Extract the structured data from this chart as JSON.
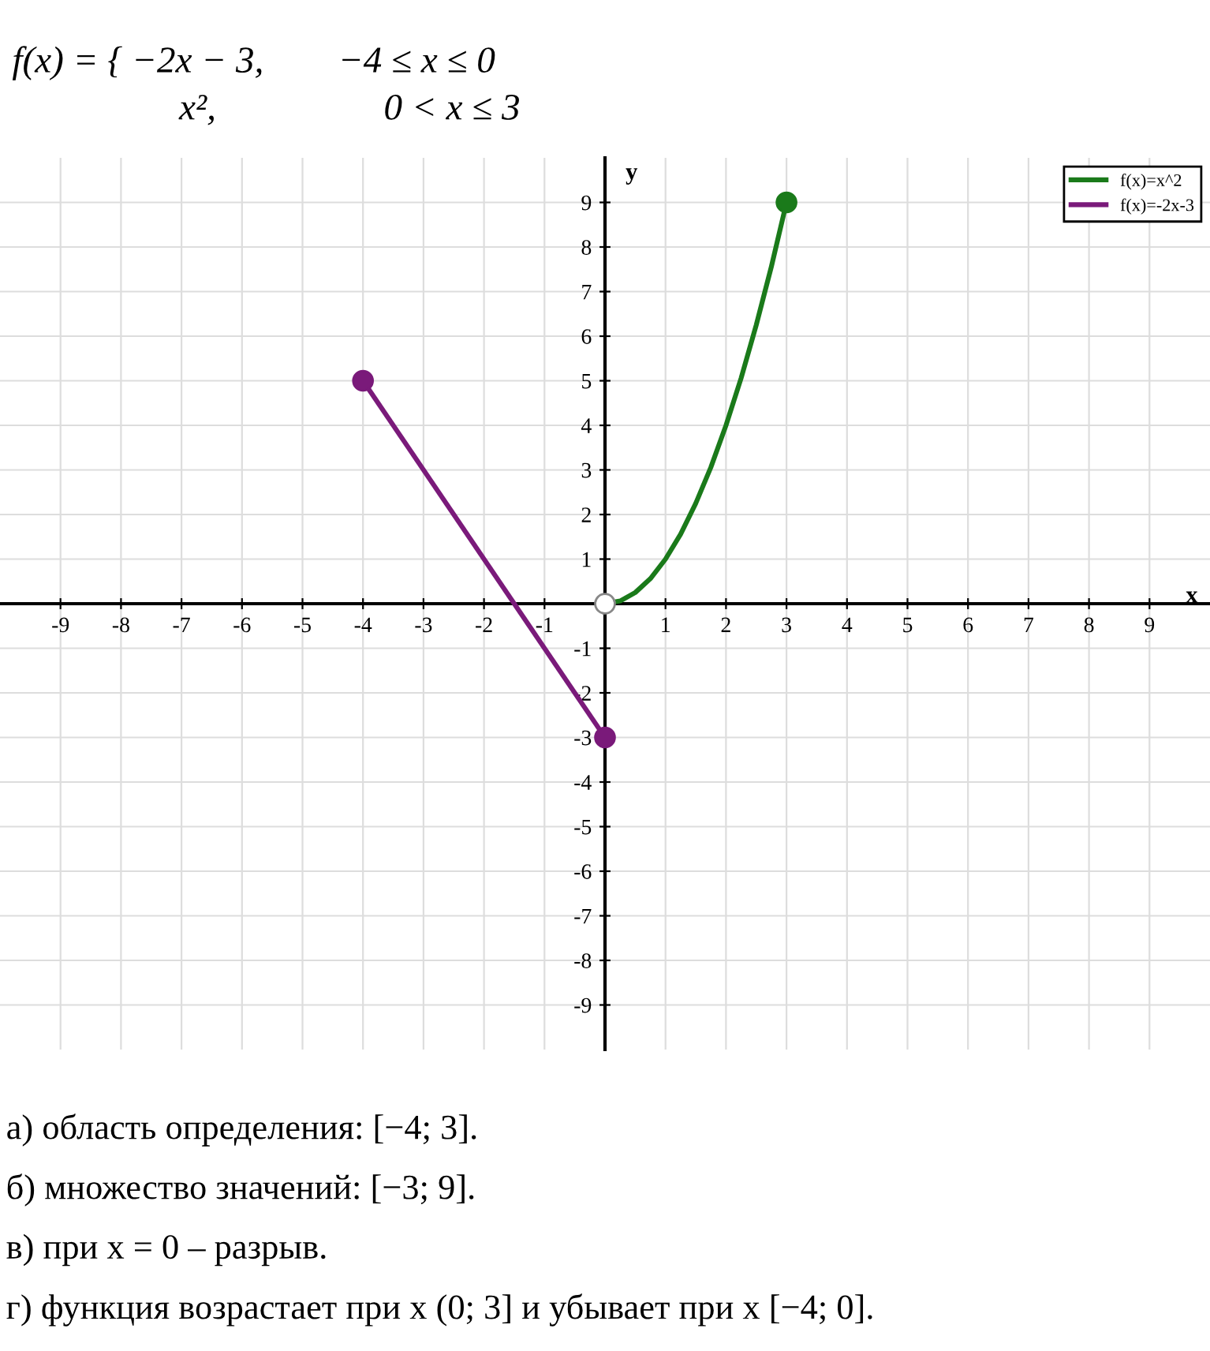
{
  "chart_data": {
    "type": "line",
    "title": "f(x) = { −2x − 3,        −4 ≤ x ≤ 0",
    "subtitle": "x²,                  0 < x ≤ 3",
    "xlabel": "x",
    "ylabel": "y",
    "series": [
      {
        "name": "f(x)=x^2",
        "color": "#1a7a1a",
        "x": [
          0,
          0.25,
          0.5,
          0.75,
          1,
          1.25,
          1.5,
          1.75,
          2,
          2.25,
          2.5,
          2.75,
          3
        ],
        "values": [
          0,
          0.06,
          0.25,
          0.56,
          1,
          1.56,
          2.25,
          3.06,
          4,
          5.06,
          6.25,
          7.56,
          9
        ]
      },
      {
        "name": "f(x)=-2x-3",
        "color": "#7a1a7a",
        "x": [
          -4,
          0
        ],
        "values": [
          5,
          -3
        ]
      },
      {
        "type": "scatter",
        "color": "#7a1a7a",
        "x": [
          -4,
          0
        ],
        "values": [
          5,
          -3
        ]
      },
      {
        "type": "scatter",
        "color": "#1a7a1a",
        "x": [
          3
        ],
        "values": [
          9
        ]
      },
      {
        "type": "scatter",
        "color": "#ffffff",
        "x": [
          0
        ],
        "values": [
          0
        ]
      }
    ],
    "xlim": [
      -10,
      10
    ],
    "ylim": [
      -10,
      10
    ],
    "xticks": [
      -9,
      -8,
      -7,
      -6,
      -5,
      -4,
      -3,
      -2,
      -1,
      1,
      2,
      3,
      4,
      5,
      6,
      7,
      8,
      9
    ],
    "yticks": [
      -9,
      -8,
      -7,
      -6,
      -5,
      -4,
      -3,
      -2,
      -1,
      1,
      2,
      3,
      4,
      5,
      6,
      7,
      8,
      9
    ],
    "grid": true,
    "legend": "top right",
    "annotations": [
      "а) область определения: [−4; 3].",
      "б) множество значений: [−3; 9].",
      "в) при x = 0 – разрыв.",
      "г) функция возрастает при x (0; 3] и убывает при x [−4; 0]."
    ]
  }
}
